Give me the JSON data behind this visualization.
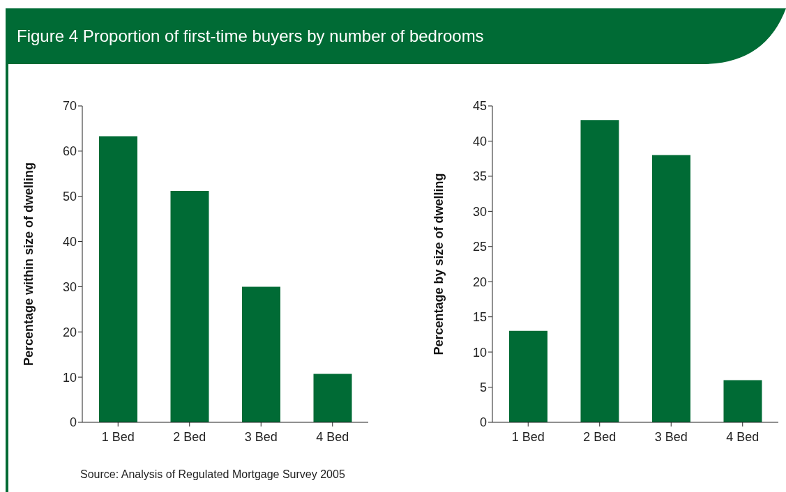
{
  "chart_data": [
    {
      "type": "bar",
      "title": "Figure 4 Proportion of first-time buyers by number of bedrooms",
      "categories": [
        "1 Bed",
        "2 Bed",
        "3 Bed",
        "4 Bed"
      ],
      "values": [
        63.3,
        51.2,
        30,
        10.7
      ],
      "color": "#006b35",
      "ylabel": "Percentage within size of dwelling",
      "ylim": [
        0,
        70
      ],
      "yticks": [
        0,
        10,
        20,
        30,
        40,
        50,
        60,
        70
      ],
      "grid": false,
      "legend": false,
      "annotations": [
        "Source: Analysis of Regulated Mortgage Survey 2005"
      ]
    },
    {
      "type": "bar",
      "categories": [
        "1 Bed",
        "2 Bed",
        "3 Bed",
        "4 Bed"
      ],
      "values": [
        13,
        43,
        38,
        6
      ],
      "color": "#006b35",
      "ylabel": "Percentage by size of dwelling",
      "ylim": [
        0,
        45
      ],
      "yticks": [
        0,
        5,
        10,
        15,
        20,
        25,
        30,
        35,
        40,
        45
      ],
      "grid": false,
      "legend": false
    }
  ]
}
